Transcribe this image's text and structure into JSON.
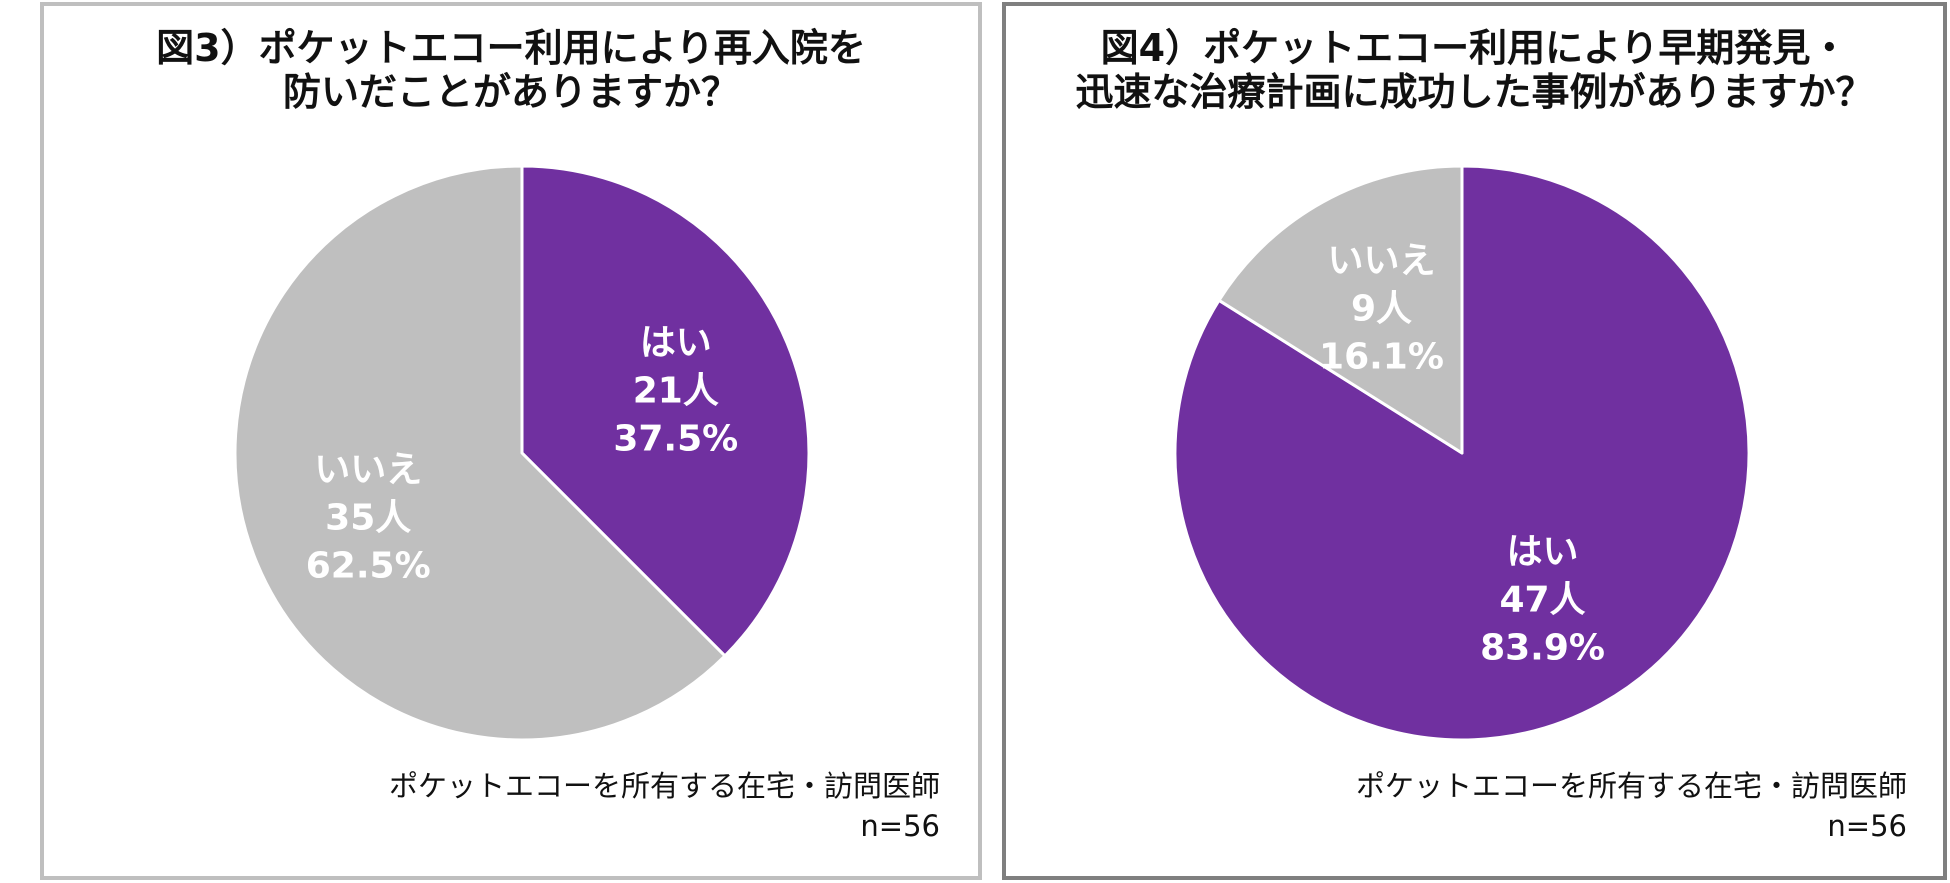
{
  "chart_data": [
    {
      "type": "pie",
      "title_lines": [
        "図3）ポケットエコー利用により再入院を",
        "防いだことがありますか？"
      ],
      "categories": [
        "はい",
        "いいえ"
      ],
      "counts": [
        21,
        35
      ],
      "count_labels": [
        "21人",
        "35人"
      ],
      "percentages": [
        37.5,
        62.5
      ],
      "percent_labels": [
        "37.5%",
        "62.5%"
      ],
      "colors": [
        "#7030a0",
        "#bfbfbf"
      ],
      "source": "ポケットエコーを所有する在宅・訪問医師",
      "n": "n=56"
    },
    {
      "type": "pie",
      "title_lines": [
        "図4）ポケットエコー利用により早期発見・",
        "迅速な治療計画に成功した事例がありますか？"
      ],
      "categories": [
        "はい",
        "いいえ"
      ],
      "counts": [
        47,
        9
      ],
      "count_labels": [
        "47人",
        "9人"
      ],
      "percentages": [
        83.9,
        16.1
      ],
      "percent_labels": [
        "83.9%",
        "16.1%"
      ],
      "colors": [
        "#7030a0",
        "#bfbfbf"
      ],
      "source": "ポケットエコーを所有する在宅・訪問医師",
      "n": "n=56"
    }
  ]
}
